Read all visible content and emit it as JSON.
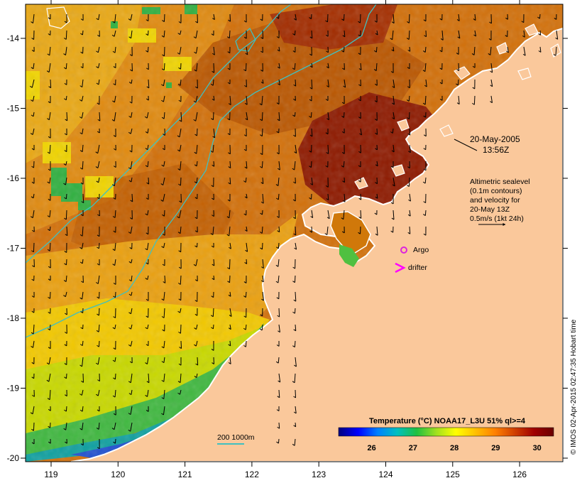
{
  "map": {
    "date_line": "20-May-2005",
    "time_line": "13:56Z",
    "altimetry_note": [
      "Altimetric sealevel",
      "(0.1m contours)",
      "and velocity for",
      "20-May 13Z",
      "0.5m/s (1kt 24h)"
    ],
    "legend": {
      "argo_label": "Argo",
      "drifter_label": "drifter",
      "argo_color": "#dd22dd",
      "drifter_color": "#ff00ff"
    },
    "depth_legend": {
      "label": "200  1000m",
      "color": "#40c0c0"
    },
    "colorbar": {
      "title": "Temperature (°C) NOAA17_L3U 51% ql>=4",
      "range": [
        25.2,
        30.4
      ],
      "ticks": [
        "26",
        "27",
        "28",
        "29",
        "30"
      ],
      "tick_values": [
        26,
        27,
        28,
        29,
        30
      ],
      "stops": [
        "#00007f",
        "#0000ff",
        "#0080ff",
        "#00c0c0",
        "#20c040",
        "#a0e020",
        "#ffff00",
        "#ffc000",
        "#ff8000",
        "#d04000",
        "#a00000",
        "#6a0000"
      ]
    },
    "lon_ticks": [
      "119",
      "120",
      "121",
      "122",
      "123",
      "124",
      "125",
      "126"
    ],
    "lon_values": [
      119,
      120,
      121,
      122,
      123,
      124,
      125,
      126
    ],
    "lat_ticks": [
      "-14",
      "-15",
      "-16",
      "-17",
      "-18",
      "-19",
      "-20"
    ],
    "lat_values": [
      -14,
      -15,
      -16,
      -17,
      -18,
      -19,
      -20
    ],
    "credit": "© IMOS 02-Apr-2015 02:47:35 Hobart time",
    "colors": {
      "land": "#fac89b",
      "coast": "#ffffff",
      "contour": "#40c0c0",
      "sst_warm": "#c85a00",
      "sst_hot": "#8a1400",
      "sst_mid": "#e69000",
      "sst_cool": "#f0d000",
      "sst_cold": "#00a060"
    }
  }
}
